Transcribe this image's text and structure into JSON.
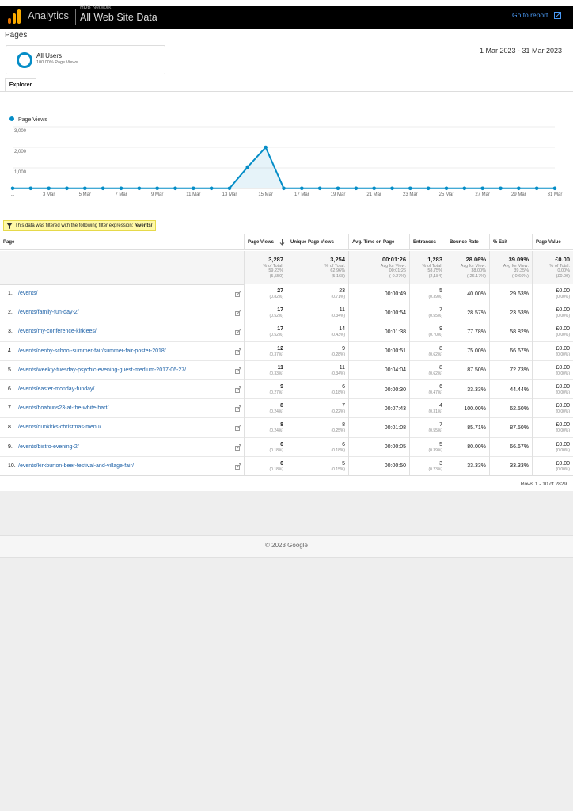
{
  "header": {
    "product": "Analytics",
    "account": "HDB Network",
    "view": "All Web Site Data",
    "link": "Go to report"
  },
  "page_title": "Pages",
  "segment": {
    "name": "All Users",
    "detail": "100.00% Page Views"
  },
  "date_range": "1 Mar 2023 - 31 Mar 2023",
  "tab": "Explorer",
  "chart": {
    "legend": "Page Views",
    "color": "#058dc7",
    "categories": [
      "...",
      null,
      "3 Mar",
      null,
      "5 Mar",
      null,
      "7 Mar",
      null,
      "9 Mar",
      null,
      "11 Mar",
      null,
      "13 Mar",
      null,
      "15 Mar",
      null,
      "17 Mar",
      null,
      "19 Mar",
      null,
      "21 Mar",
      null,
      "23 Mar",
      null,
      "25 Mar",
      null,
      "27 Mar",
      null,
      "29 Mar",
      null,
      "31 Mar"
    ],
    "values": [
      9,
      9,
      9,
      9,
      9,
      9,
      9,
      9,
      9,
      9,
      9,
      9,
      9,
      1040,
      2000,
      9,
      9,
      9,
      9,
      9,
      9,
      9,
      9,
      9,
      9,
      9,
      9,
      9,
      9,
      9,
      9
    ],
    "ylim": [
      0,
      3000
    ],
    "yticks": [
      {
        "value": 1000,
        "label": "1,000"
      },
      {
        "value": 2000,
        "label": "2,000"
      },
      {
        "value": 3000,
        "label": "3,000"
      }
    ]
  },
  "filter": {
    "text": "This data was filtered with the following filter expression:",
    "expression": "/events/"
  },
  "table": {
    "columns": [
      "Page",
      "Page Views",
      "Unique Page Views",
      "Avg. Time on Page",
      "Entrances",
      "Bounce Rate",
      "% Exit",
      "Page Value"
    ],
    "totals": [
      [
        "3,287",
        "% of Total:",
        "59.23%",
        "(5,550)"
      ],
      [
        "3,254",
        "% of Total:",
        "62.96%",
        "(5,168)"
      ],
      [
        "00:01:26",
        "Avg for View:",
        "00:01:26",
        "(-0.27%)"
      ],
      [
        "1,283",
        "% of Total:",
        "58.75%",
        "(2,184)"
      ],
      [
        "28.06%",
        "Avg for View:",
        "38.00%",
        "(-26.17%)"
      ],
      [
        "39.09%",
        "Avg for View:",
        "39.35%",
        "(-0.66%)"
      ],
      [
        "£0.00",
        "% of Total:",
        "0.00%",
        "(£0.00)"
      ]
    ],
    "rows": [
      {
        "index": "1.",
        "page": "/events/",
        "cells": [
          [
            "27",
            "(0.82%)"
          ],
          [
            "23",
            "(0.71%)"
          ],
          [
            "00:00:49"
          ],
          [
            "5",
            "(0.39%)"
          ],
          [
            "40.00%"
          ],
          [
            "29.63%"
          ],
          [
            "£0.00",
            "(0.00%)"
          ]
        ]
      },
      {
        "index": "2.",
        "page": "/events/family-fun-day-2/",
        "cells": [
          [
            "17",
            "(0.52%)"
          ],
          [
            "11",
            "(0.34%)"
          ],
          [
            "00:00:54"
          ],
          [
            "7",
            "(0.55%)"
          ],
          [
            "28.57%"
          ],
          [
            "23.53%"
          ],
          [
            "£0.00",
            "(0.00%)"
          ]
        ]
      },
      {
        "index": "3.",
        "page": "/events/my-conference-kirklees/",
        "cells": [
          [
            "17",
            "(0.52%)"
          ],
          [
            "14",
            "(0.43%)"
          ],
          [
            "00:01:38"
          ],
          [
            "9",
            "(0.70%)"
          ],
          [
            "77.78%"
          ],
          [
            "58.82%"
          ],
          [
            "£0.00",
            "(0.00%)"
          ]
        ]
      },
      {
        "index": "4.",
        "page": "/events/denby-school-summer-fair/summer-fair-poster-2018/",
        "cells": [
          [
            "12",
            "(0.37%)"
          ],
          [
            "9",
            "(0.28%)"
          ],
          [
            "00:00:51"
          ],
          [
            "8",
            "(0.62%)"
          ],
          [
            "75.00%"
          ],
          [
            "66.67%"
          ],
          [
            "£0.00",
            "(0.00%)"
          ]
        ]
      },
      {
        "index": "5.",
        "page": "/events/weekly-tuesday-psychic-evening-guest-medium-2017-06-27/",
        "cells": [
          [
            "11",
            "(0.33%)"
          ],
          [
            "11",
            "(0.34%)"
          ],
          [
            "00:04:04"
          ],
          [
            "8",
            "(0.62%)"
          ],
          [
            "87.50%"
          ],
          [
            "72.73%"
          ],
          [
            "£0.00",
            "(0.00%)"
          ]
        ]
      },
      {
        "index": "6.",
        "page": "/events/easter-monday-funday/",
        "cells": [
          [
            "9",
            "(0.27%)"
          ],
          [
            "6",
            "(0.18%)"
          ],
          [
            "00:00:30"
          ],
          [
            "6",
            "(0.47%)"
          ],
          [
            "33.33%"
          ],
          [
            "44.44%"
          ],
          [
            "£0.00",
            "(0.00%)"
          ]
        ]
      },
      {
        "index": "7.",
        "page": "/events/boabuns23-at-the-white-hart/",
        "cells": [
          [
            "8",
            "(0.24%)"
          ],
          [
            "7",
            "(0.22%)"
          ],
          [
            "00:07:43"
          ],
          [
            "4",
            "(0.31%)"
          ],
          [
            "100.00%"
          ],
          [
            "62.50%"
          ],
          [
            "£0.00",
            "(0.00%)"
          ]
        ]
      },
      {
        "index": "8.",
        "page": "/events/dunkirks-christmas-menu/",
        "cells": [
          [
            "8",
            "(0.24%)"
          ],
          [
            "8",
            "(0.25%)"
          ],
          [
            "00:01:08"
          ],
          [
            "7",
            "(0.55%)"
          ],
          [
            "85.71%"
          ],
          [
            "87.50%"
          ],
          [
            "£0.00",
            "(0.00%)"
          ]
        ]
      },
      {
        "index": "9.",
        "page": "/events/bistro-evening-2/",
        "cells": [
          [
            "6",
            "(0.18%)"
          ],
          [
            "6",
            "(0.18%)"
          ],
          [
            "00:00:05"
          ],
          [
            "5",
            "(0.39%)"
          ],
          [
            "80.00%"
          ],
          [
            "66.67%"
          ],
          [
            "£0.00",
            "(0.00%)"
          ]
        ]
      },
      {
        "index": "10.",
        "page": "/events/kirkburton-beer-festival-and-village-fair/",
        "cells": [
          [
            "6",
            "(0.18%)"
          ],
          [
            "5",
            "(0.15%)"
          ],
          [
            "00:00:50"
          ],
          [
            "3",
            "(0.23%)"
          ],
          [
            "33.33%"
          ],
          [
            "33.33%"
          ],
          [
            "£0.00",
            "(0.00%)"
          ]
        ]
      }
    ],
    "pagination": "Rows 1 - 10 of 2829"
  },
  "footer": "© 2023 Google"
}
